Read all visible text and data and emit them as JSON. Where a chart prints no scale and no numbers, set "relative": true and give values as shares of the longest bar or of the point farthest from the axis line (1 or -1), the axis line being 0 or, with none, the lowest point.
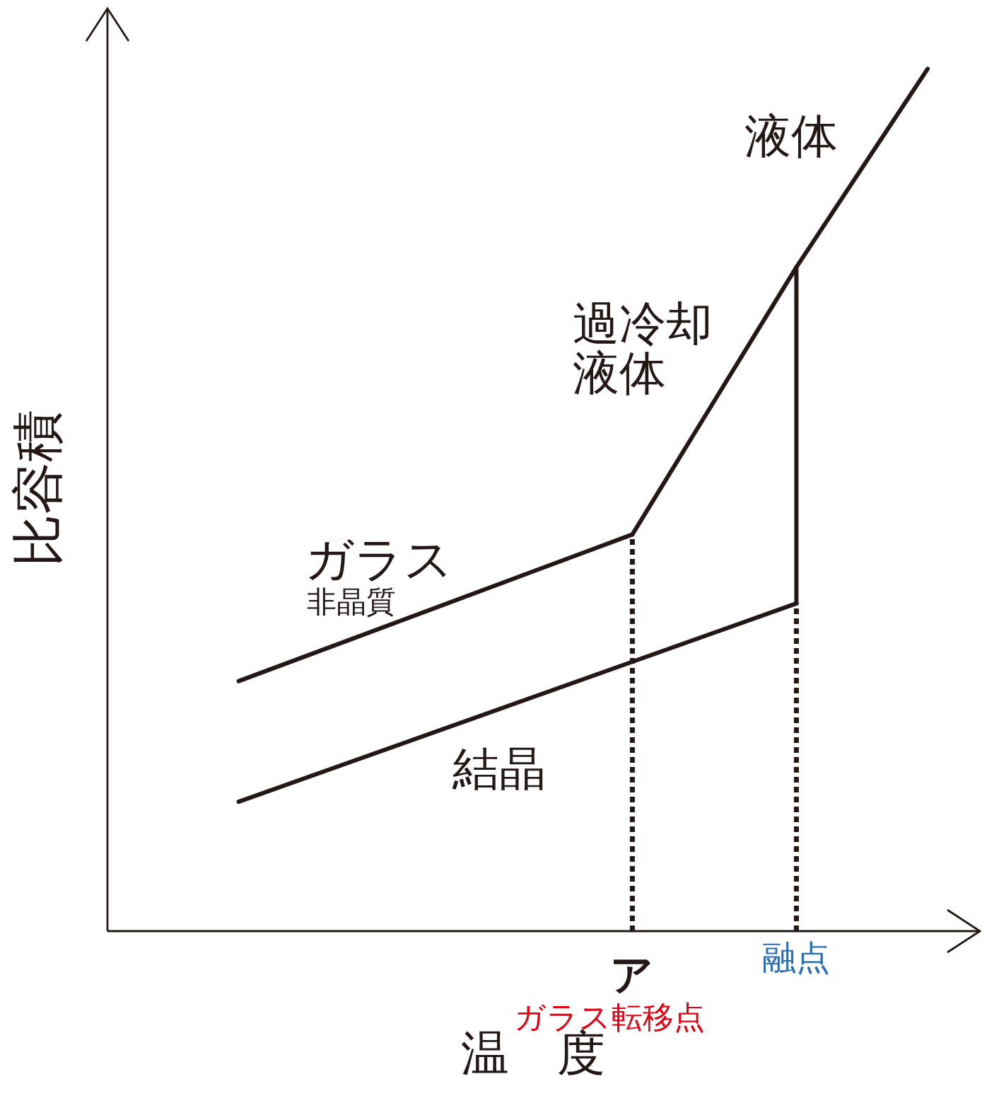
{
  "chart_data": {
    "type": "line",
    "relative": true,
    "xlabel": "温　度",
    "ylabel": "比容積",
    "marker": "none",
    "line_style": "solid",
    "categories": [
      null,
      null,
      null,
      null,
      null,
      null,
      null,
      null,
      null,
      null,
      null,
      null,
      null,
      null,
      null,
      null,
      "ア",
      null,
      null,
      null,
      null,
      "融点",
      null,
      null,
      null,
      null
    ],
    "series": [
      {
        "name": "ガラス",
        "color": "#231815",
        "values": [
          null,
          null,
          null,
          null,
          0.29,
          null,
          null,
          null,
          null,
          null,
          null,
          null,
          null,
          null,
          null,
          null,
          0.46,
          null,
          null,
          null,
          null,
          null,
          null,
          null,
          null,
          null
        ]
      },
      {
        "name": "過冷却液体",
        "color": "#231815",
        "values": [
          null,
          null,
          null,
          null,
          null,
          null,
          null,
          null,
          null,
          null,
          null,
          null,
          null,
          null,
          null,
          null,
          0.46,
          null,
          null,
          null,
          null,
          0.77,
          null,
          null,
          null,
          null
        ]
      },
      {
        "name": "液体",
        "color": "#231815",
        "values": [
          null,
          null,
          null,
          null,
          null,
          null,
          null,
          null,
          null,
          null,
          null,
          null,
          null,
          null,
          null,
          null,
          null,
          null,
          null,
          null,
          null,
          0.77,
          null,
          null,
          null,
          1
        ]
      },
      {
        "name": "結晶",
        "color": "#231815",
        "values": [
          null,
          null,
          null,
          null,
          0.15,
          null,
          null,
          null,
          null,
          null,
          null,
          null,
          null,
          null,
          null,
          null,
          null,
          null,
          null,
          null,
          null,
          0.38,
          null,
          null,
          null,
          null
        ]
      },
      {
        "color": "#231815",
        "x": [
          "融点",
          "融点"
        ],
        "values": [
          0.38,
          0.77
        ]
      },
      {
        "color": "#231815",
        "x": [
          "ア",
          "ア"
        ],
        "values": [
          0,
          0.46
        ],
        "line_style": "dotted"
      },
      {
        "color": "#231815",
        "x": [
          "融点",
          "融点"
        ],
        "values": [
          0,
          0.38
        ],
        "line_style": "dotted"
      }
    ],
    "annotations": [
      "非晶質",
      "ガラス転移点"
    ]
  }
}
